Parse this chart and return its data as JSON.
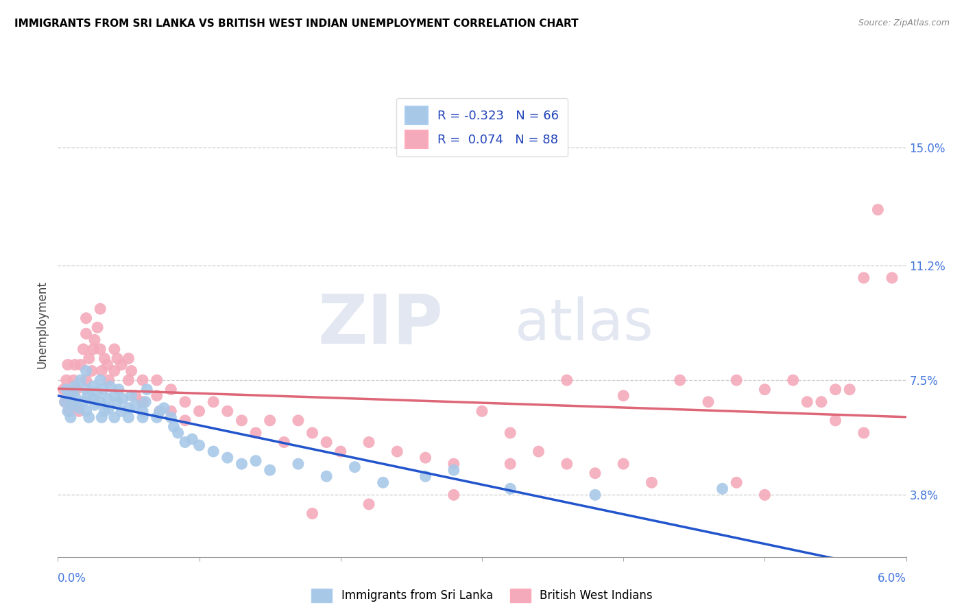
{
  "title": "IMMIGRANTS FROM SRI LANKA VS BRITISH WEST INDIAN UNEMPLOYMENT CORRELATION CHART",
  "source": "Source: ZipAtlas.com",
  "ylabel": "Unemployment",
  "ytick_labels": [
    "15.0%",
    "11.2%",
    "7.5%",
    "3.8%"
  ],
  "ytick_values": [
    0.15,
    0.112,
    0.075,
    0.038
  ],
  "xmin": 0.0,
  "xmax": 0.06,
  "ymin": 0.018,
  "ymax": 0.168,
  "legend_r_sri_lanka": "-0.323",
  "legend_n_sri_lanka": "66",
  "legend_r_bwi": "0.074",
  "legend_n_bwi": "88",
  "sri_lanka_color": "#a8c8e8",
  "bwi_color": "#f4aabb",
  "sri_lanka_line_color": "#2255cc",
  "bwi_line_color": "#dd6677",
  "sri_lanka_x": [
    0.0005,
    0.0006,
    0.0007,
    0.0008,
    0.0009,
    0.001,
    0.0011,
    0.0012,
    0.0013,
    0.0015,
    0.0016,
    0.0018,
    0.002,
    0.002,
    0.002,
    0.0021,
    0.0022,
    0.0025,
    0.0025,
    0.0026,
    0.0028,
    0.003,
    0.003,
    0.0031,
    0.0032,
    0.0033,
    0.0035,
    0.0036,
    0.0037,
    0.004,
    0.004,
    0.0042,
    0.0043,
    0.0045,
    0.0046,
    0.005,
    0.005,
    0.0052,
    0.0055,
    0.006,
    0.006,
    0.0062,
    0.0063,
    0.007,
    0.0072,
    0.0075,
    0.008,
    0.0082,
    0.0085,
    0.009,
    0.0095,
    0.01,
    0.011,
    0.012,
    0.013,
    0.014,
    0.015,
    0.017,
    0.019,
    0.021,
    0.023,
    0.026,
    0.028,
    0.032,
    0.038,
    0.047
  ],
  "sri_lanka_y": [
    0.068,
    0.072,
    0.065,
    0.07,
    0.063,
    0.067,
    0.071,
    0.073,
    0.069,
    0.066,
    0.075,
    0.068,
    0.065,
    0.072,
    0.078,
    0.07,
    0.063,
    0.069,
    0.073,
    0.067,
    0.071,
    0.075,
    0.068,
    0.063,
    0.072,
    0.065,
    0.069,
    0.066,
    0.073,
    0.07,
    0.063,
    0.068,
    0.072,
    0.065,
    0.069,
    0.066,
    0.063,
    0.07,
    0.067,
    0.065,
    0.063,
    0.068,
    0.072,
    0.063,
    0.065,
    0.066,
    0.063,
    0.06,
    0.058,
    0.055,
    0.056,
    0.054,
    0.052,
    0.05,
    0.048,
    0.049,
    0.046,
    0.048,
    0.044,
    0.047,
    0.042,
    0.044,
    0.046,
    0.04,
    0.038,
    0.04
  ],
  "bwi_x": [
    0.0004,
    0.0005,
    0.0006,
    0.0007,
    0.0008,
    0.0009,
    0.001,
    0.0011,
    0.0012,
    0.0013,
    0.0015,
    0.0016,
    0.0018,
    0.002,
    0.002,
    0.002,
    0.0022,
    0.0024,
    0.0025,
    0.0026,
    0.0028,
    0.003,
    0.003,
    0.0031,
    0.0033,
    0.0035,
    0.0036,
    0.004,
    0.004,
    0.0042,
    0.0045,
    0.005,
    0.005,
    0.0052,
    0.0055,
    0.006,
    0.006,
    0.007,
    0.007,
    0.0072,
    0.008,
    0.008,
    0.009,
    0.009,
    0.01,
    0.011,
    0.012,
    0.013,
    0.014,
    0.015,
    0.016,
    0.017,
    0.018,
    0.019,
    0.02,
    0.022,
    0.024,
    0.026,
    0.028,
    0.03,
    0.032,
    0.034,
    0.036,
    0.038,
    0.04,
    0.042,
    0.044,
    0.046,
    0.048,
    0.05,
    0.052,
    0.053,
    0.054,
    0.055,
    0.056,
    0.057,
    0.058,
    0.059,
    0.057,
    0.055,
    0.05,
    0.048,
    0.04,
    0.036,
    0.032,
    0.028,
    0.022,
    0.018
  ],
  "bwi_y": [
    0.072,
    0.068,
    0.075,
    0.08,
    0.065,
    0.07,
    0.068,
    0.075,
    0.08,
    0.072,
    0.065,
    0.08,
    0.085,
    0.09,
    0.095,
    0.075,
    0.082,
    0.078,
    0.085,
    0.088,
    0.092,
    0.098,
    0.085,
    0.078,
    0.082,
    0.08,
    0.075,
    0.085,
    0.078,
    0.082,
    0.08,
    0.075,
    0.082,
    0.078,
    0.07,
    0.075,
    0.068,
    0.075,
    0.07,
    0.065,
    0.072,
    0.065,
    0.068,
    0.062,
    0.065,
    0.068,
    0.065,
    0.062,
    0.058,
    0.062,
    0.055,
    0.062,
    0.058,
    0.055,
    0.052,
    0.055,
    0.052,
    0.05,
    0.048,
    0.065,
    0.058,
    0.052,
    0.048,
    0.045,
    0.048,
    0.042,
    0.075,
    0.068,
    0.075,
    0.072,
    0.075,
    0.068,
    0.068,
    0.062,
    0.072,
    0.058,
    0.13,
    0.108,
    0.108,
    0.072,
    0.038,
    0.042,
    0.07,
    0.075,
    0.048,
    0.038,
    0.035,
    0.032
  ]
}
